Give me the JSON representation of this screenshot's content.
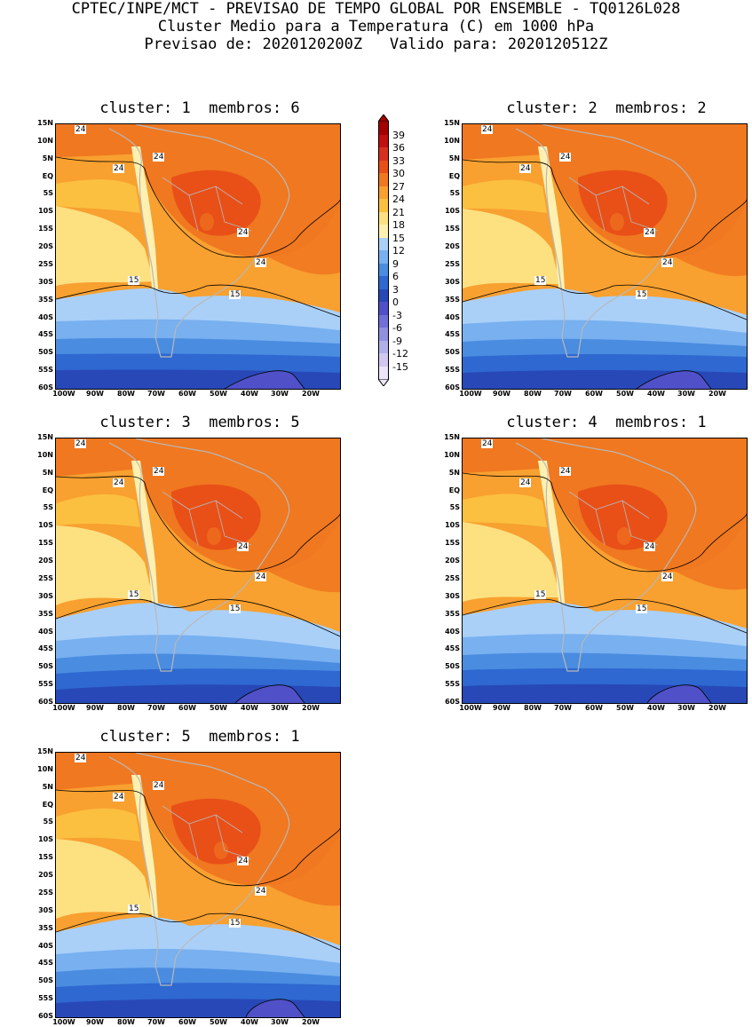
{
  "header": {
    "line1": "CPTEC/INPE/MCT - PREVISAO DE TEMPO GLOBAL POR ENSEMBLE - TQ0126L028",
    "line2": "Cluster Medio para a Temperatura (C) em 1000 hPa",
    "line3": "Previsao de: 2020120200Z   Valido para: 2020120512Z"
  },
  "panels": [
    {
      "title": "cluster: 1  membros: 6"
    },
    {
      "title": "cluster: 2  membros: 2"
    },
    {
      "title": "cluster: 3  membros: 5"
    },
    {
      "title": "cluster: 4  membros: 1"
    },
    {
      "title": "cluster: 5  membros: 1"
    }
  ],
  "lat_ticks": [
    "15N",
    "10N",
    "5N",
    "EQ",
    "5S",
    "10S",
    "15S",
    "20S",
    "25S",
    "30S",
    "35S",
    "40S",
    "45S",
    "50S",
    "55S",
    "60S"
  ],
  "lon_ticks": [
    "100W",
    "90W",
    "80W",
    "70W",
    "60W",
    "50W",
    "40W",
    "30W",
    "20W"
  ],
  "colorbar": {
    "labels": [
      "39",
      "36",
      "33",
      "30",
      "27",
      "24",
      "21",
      "18",
      "15",
      "12",
      "9",
      "6",
      "3",
      "0",
      "-3",
      "-6",
      "-9",
      "-12",
      "-15"
    ],
    "colors": [
      "#a50000",
      "#c01010",
      "#d83020",
      "#e85018",
      "#f07820",
      "#f8a030",
      "#fbc040",
      "#fde080",
      "#fef0b0",
      "#aad0f8",
      "#78b0f0",
      "#4a8ce0",
      "#2e68d0",
      "#2848b8",
      "#5050c8",
      "#7070d8",
      "#9090e0",
      "#b0b0e8",
      "#d0c8f0",
      "#ece4fa"
    ]
  },
  "contour_labels": {
    "warm": "24",
    "cool": "15"
  }
}
